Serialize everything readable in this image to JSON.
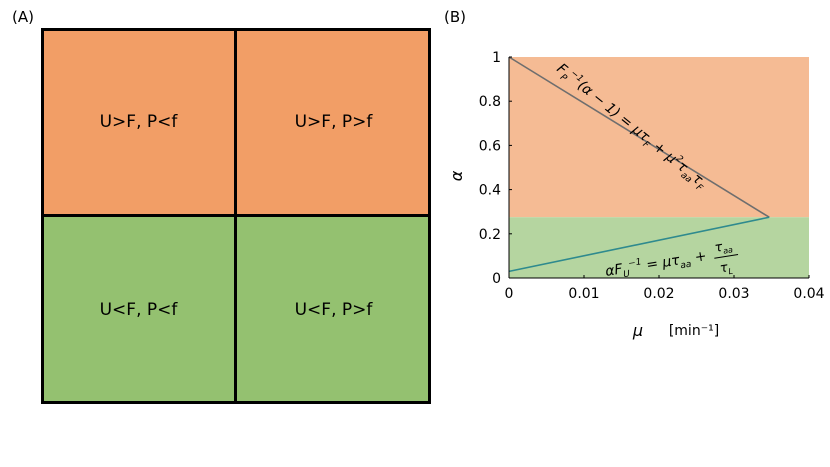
{
  "panel_a": {
    "label": "(A)",
    "quadrants": [
      {
        "text": "U>F, P<f",
        "color": "#f29e66"
      },
      {
        "text": "U>F, P>f",
        "color": "#f29e66"
      },
      {
        "text": "U<F, P<f",
        "color": "#94c170"
      },
      {
        "text": "U<F, P>f",
        "color": "#94c170"
      }
    ]
  },
  "panel_b": {
    "label": "(B)",
    "equation_upper": "F_P^{-1}(α − 1) = μτ_F + μ²τ_{aa}τ_F",
    "equation_lower": "αF_U^{-1} = μτ_{aa} + τ_{aa}/τ_L"
  },
  "chart_data": {
    "type": "line",
    "xlabel": "μ",
    "xlabel_unit": "[min⁻¹]",
    "ylabel": "α",
    "xlim": [
      0,
      0.04
    ],
    "ylim": [
      0,
      1
    ],
    "xticks": [
      "0",
      "0.01",
      "0.02",
      "0.03",
      "0.04"
    ],
    "yticks": [
      "0",
      "0.2",
      "0.4",
      "0.6",
      "0.8",
      "1"
    ],
    "regions": [
      {
        "y_from": 0.275,
        "y_to": 1,
        "color": "#f5bb94"
      },
      {
        "y_from": 0,
        "y_to": 0.275,
        "color": "#b5d5a0"
      }
    ],
    "series": [
      {
        "x": [
          0,
          0.0347
        ],
        "y": [
          1,
          0.275
        ],
        "color": "#6e6e6e"
      },
      {
        "x": [
          0,
          0.0347
        ],
        "y": [
          0.03,
          0.275
        ],
        "color": "#2e8a8e"
      }
    ]
  }
}
